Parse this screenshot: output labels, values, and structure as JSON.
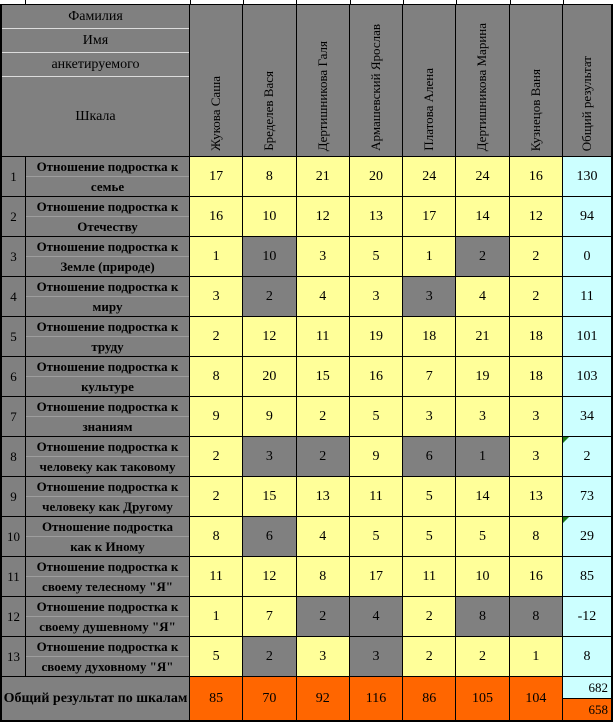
{
  "colors": {
    "cell_gray": "#808080",
    "cell_yellow": "#FFFF99",
    "cell_blue": "#CCFFFF",
    "cell_orange": "#FF6600",
    "error_marker_green": "#1b7a1b",
    "label_divider": "#9e9e9e",
    "header_separator": "#dcdcdc"
  },
  "header": {
    "surname_label": "Фамилия",
    "name_label": "Имя",
    "respondent_label": "анкетируемого",
    "scale_label": "Шкала",
    "people": [
      "Жукова Саша",
      "Бределев Вася",
      "Дертишникова Галя",
      "Армашевский Ярослав",
      "Платова Алена",
      "Дертишникова Марина",
      "Кузнецов Ваня"
    ],
    "total_col_label": "Общий результат"
  },
  "rows": [
    {
      "num": "1",
      "label1": "Отношение подростка к",
      "label2": "семье",
      "values": [
        17,
        8,
        21,
        20,
        24,
        24,
        16
      ],
      "neg": [
        0,
        0,
        0,
        0,
        0,
        0,
        0
      ],
      "total": "130",
      "marker": false
    },
    {
      "num": "2",
      "label1": "Отношение подростка к",
      "label2": "Отечеству",
      "values": [
        16,
        10,
        12,
        13,
        17,
        14,
        12
      ],
      "neg": [
        0,
        0,
        0,
        0,
        0,
        0,
        0
      ],
      "total": "94",
      "marker": false
    },
    {
      "num": "3",
      "label1": "Отношение подростка к",
      "label2": "Земле  (природе)",
      "values": [
        1,
        10,
        3,
        5,
        1,
        2,
        2
      ],
      "neg": [
        0,
        1,
        0,
        0,
        0,
        1,
        0
      ],
      "total": "0",
      "marker": false
    },
    {
      "num": "4",
      "label1": "Отношение подростка к",
      "label2": "миру",
      "values": [
        3,
        2,
        4,
        3,
        3,
        4,
        2
      ],
      "neg": [
        0,
        1,
        0,
        0,
        1,
        0,
        0
      ],
      "total": "11",
      "marker": false
    },
    {
      "num": "5",
      "label1": "Отношение подростка к",
      "label2": "труду",
      "values": [
        2,
        12,
        11,
        19,
        18,
        21,
        18
      ],
      "neg": [
        0,
        0,
        0,
        0,
        0,
        0,
        0
      ],
      "total": "101",
      "marker": false
    },
    {
      "num": "6",
      "label1": "Отношение подростка к",
      "label2": "культуре",
      "values": [
        8,
        20,
        15,
        16,
        7,
        19,
        18
      ],
      "neg": [
        0,
        0,
        0,
        0,
        0,
        0,
        0
      ],
      "total": "103",
      "marker": false
    },
    {
      "num": "7",
      "label1": "Отношение подростка к",
      "label2": "знаниям",
      "values": [
        9,
        9,
        2,
        5,
        3,
        3,
        3
      ],
      "neg": [
        0,
        0,
        0,
        0,
        0,
        0,
        0
      ],
      "total": "34",
      "marker": false
    },
    {
      "num": "8",
      "label1": "Отношение подростка к",
      "label2": "человеку как таковому",
      "values": [
        2,
        3,
        2,
        9,
        6,
        1,
        3
      ],
      "neg": [
        0,
        1,
        1,
        0,
        1,
        1,
        0
      ],
      "total": "2",
      "marker": true
    },
    {
      "num": "9",
      "label1": "Отношение подростка к",
      "label2": "человеку как Другому",
      "values": [
        2,
        15,
        13,
        11,
        5,
        14,
        13
      ],
      "neg": [
        0,
        0,
        0,
        0,
        0,
        0,
        0
      ],
      "total": "73",
      "marker": false
    },
    {
      "num": "10",
      "label1": "Отношение подростка",
      "label2": "как к Иному",
      "values": [
        8,
        6,
        4,
        5,
        5,
        5,
        8
      ],
      "neg": [
        0,
        1,
        0,
        0,
        0,
        0,
        0
      ],
      "total": "29",
      "marker": true
    },
    {
      "num": "11",
      "label1": "Отношение подростка к",
      "label2": "своему телесному \"Я\"",
      "values": [
        11,
        12,
        8,
        17,
        11,
        10,
        16
      ],
      "neg": [
        0,
        0,
        0,
        0,
        0,
        0,
        0
      ],
      "total": "85",
      "marker": false
    },
    {
      "num": "12",
      "label1": "Отношение подростка к",
      "label2": "своему душевному \"Я\"",
      "values": [
        1,
        7,
        2,
        4,
        2,
        8,
        8
      ],
      "neg": [
        0,
        0,
        1,
        1,
        0,
        1,
        1
      ],
      "total": "-12",
      "marker": false
    },
    {
      "num": "13",
      "label1": "Отношение подростка к",
      "label2": "своему духовному \"Я\"",
      "values": [
        5,
        2,
        3,
        3,
        2,
        2,
        1
      ],
      "neg": [
        0,
        1,
        0,
        1,
        0,
        0,
        0
      ],
      "total": "8",
      "marker": false
    }
  ],
  "footer": {
    "label": "Общий результат по шкалам",
    "values": [
      "85",
      "70",
      "92",
      "116",
      "86",
      "105",
      "104"
    ],
    "total_top": "682",
    "total_bottom": "658"
  }
}
